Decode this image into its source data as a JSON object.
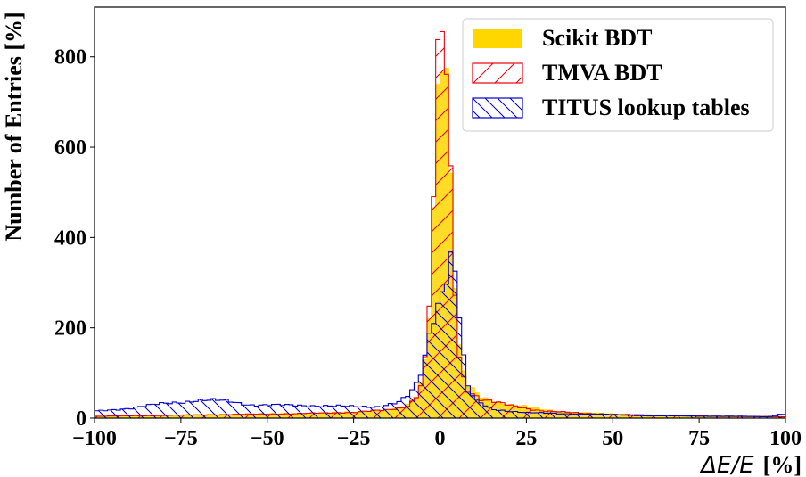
{
  "chart_data": {
    "type": "histogram",
    "title": "",
    "xlabel_math": "ΔE/E",
    "xlabel_unit": "[%]",
    "ylabel": "Number of Entries [%]",
    "xlim": [
      -100,
      100
    ],
    "ylim": [
      0,
      910
    ],
    "xticks": [
      -100,
      -75,
      -50,
      -25,
      0,
      25,
      50,
      75,
      100
    ],
    "xtick_labels": [
      "−100",
      "−75",
      "−50",
      "−25",
      "0",
      "25",
      "50",
      "75",
      "100"
    ],
    "yticks": [
      0,
      200,
      400,
      600,
      800
    ],
    "ytick_labels": [
      "0",
      "200",
      "400",
      "600",
      "800"
    ],
    "grid": false,
    "legend_position": "top-right",
    "series": [
      {
        "name": "Scikit BDT",
        "style": "filled",
        "color": "#FFD700",
        "points": [
          [
            -100,
            4
          ],
          [
            -80,
            6
          ],
          [
            -60,
            8
          ],
          [
            -40,
            10
          ],
          [
            -25,
            13
          ],
          [
            -15,
            18
          ],
          [
            -10,
            25
          ],
          [
            -7,
            45
          ],
          [
            -5,
            90
          ],
          [
            -4,
            150
          ],
          [
            -3,
            260
          ],
          [
            -2,
            450
          ],
          [
            -1,
            700
          ],
          [
            0,
            860
          ],
          [
            1,
            860
          ],
          [
            2,
            760
          ],
          [
            3,
            560
          ],
          [
            4,
            360
          ],
          [
            5,
            200
          ],
          [
            6,
            120
          ],
          [
            8,
            70
          ],
          [
            12,
            45
          ],
          [
            20,
            30
          ],
          [
            25,
            25
          ],
          [
            30,
            18
          ],
          [
            40,
            12
          ],
          [
            50,
            9
          ],
          [
            65,
            6
          ],
          [
            80,
            5
          ],
          [
            100,
            3
          ]
        ]
      },
      {
        "name": "TMVA BDT",
        "style": "hatch-forward",
        "color": "#E8000B",
        "points": [
          [
            -100,
            4
          ],
          [
            -80,
            6
          ],
          [
            -60,
            8
          ],
          [
            -40,
            10
          ],
          [
            -25,
            13
          ],
          [
            -15,
            18
          ],
          [
            -10,
            25
          ],
          [
            -7,
            45
          ],
          [
            -5,
            90
          ],
          [
            -4,
            150
          ],
          [
            -3,
            260
          ],
          [
            -2,
            450
          ],
          [
            -1,
            700
          ],
          [
            0,
            830
          ],
          [
            1,
            840
          ],
          [
            2,
            730
          ],
          [
            3,
            540
          ],
          [
            4,
            340
          ],
          [
            5,
            190
          ],
          [
            6,
            110
          ],
          [
            8,
            65
          ],
          [
            12,
            42
          ],
          [
            20,
            28
          ],
          [
            25,
            22
          ],
          [
            30,
            16
          ],
          [
            40,
            11
          ],
          [
            50,
            8
          ],
          [
            65,
            6
          ],
          [
            80,
            4
          ],
          [
            100,
            3
          ]
        ]
      },
      {
        "name": "TITUS lookup tables",
        "style": "hatch-back",
        "color": "#0000CC",
        "points": [
          [
            -100,
            15
          ],
          [
            -90,
            22
          ],
          [
            -80,
            32
          ],
          [
            -70,
            40
          ],
          [
            -62,
            38
          ],
          [
            -55,
            30
          ],
          [
            -45,
            28
          ],
          [
            -35,
            28
          ],
          [
            -25,
            25
          ],
          [
            -18,
            26
          ],
          [
            -12,
            35
          ],
          [
            -9,
            50
          ],
          [
            -7,
            70
          ],
          [
            -5,
            110
          ],
          [
            -4,
            150
          ],
          [
            -3,
            190
          ],
          [
            -2,
            230
          ],
          [
            -1,
            250
          ],
          [
            0,
            275
          ],
          [
            1,
            300
          ],
          [
            2,
            340
          ],
          [
            3,
            370
          ],
          [
            4,
            350
          ],
          [
            5,
            290
          ],
          [
            6,
            200
          ],
          [
            7,
            120
          ],
          [
            8,
            70
          ],
          [
            10,
            40
          ],
          [
            15,
            20
          ],
          [
            25,
            12
          ],
          [
            35,
            10
          ],
          [
            50,
            8
          ],
          [
            60,
            5
          ],
          [
            70,
            5
          ],
          [
            80,
            4
          ],
          [
            90,
            4
          ],
          [
            95,
            3
          ],
          [
            98,
            8
          ],
          [
            100,
            8
          ]
        ]
      }
    ]
  }
}
